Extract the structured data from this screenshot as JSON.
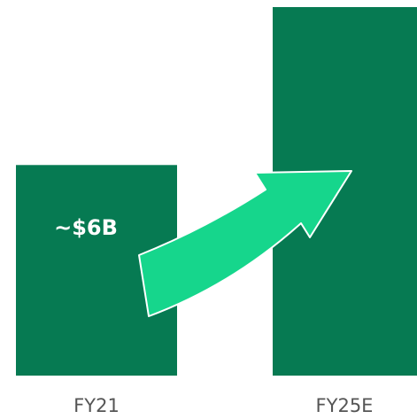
{
  "chart_data": {
    "type": "bar",
    "categories": [
      "FY21",
      "FY25E"
    ],
    "values": [
      6,
      10.5
    ],
    "value_labels": [
      "~$6B",
      null
    ],
    "color": "#067a52"
  }
}
